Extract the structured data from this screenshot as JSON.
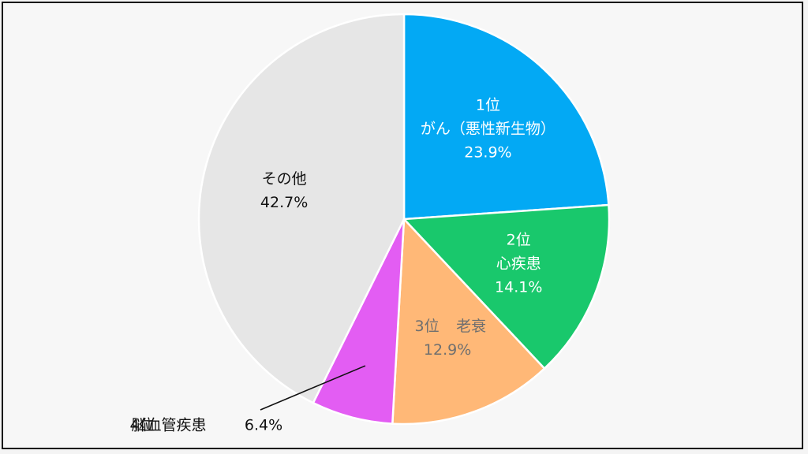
{
  "chart_data": {
    "type": "pie",
    "title": "",
    "start_angle_deg": 0,
    "direction": "clockwise",
    "slices": [
      {
        "rank": "1位",
        "name": "がん（悪性新生物）",
        "value": 23.9,
        "value_label": "23.9%",
        "color": "#03a9f4",
        "label_color": "#ffffff",
        "label_layout": "stacked"
      },
      {
        "rank": "2位",
        "name": "心疾患",
        "value": 14.1,
        "value_label": "14.1%",
        "color": "#19c86c",
        "label_color": "#ffffff",
        "label_layout": "stacked"
      },
      {
        "rank": "3位",
        "name": "老衰",
        "value": 12.9,
        "value_label": "12.9%",
        "color": "#ffb877",
        "label_color": "#6f6f6f",
        "label_layout": "rank-name-inline"
      },
      {
        "rank": "4位",
        "name": "脳血管疾患",
        "value": 6.4,
        "value_label": "6.4%",
        "color": "#e35df3",
        "label_color": "#111111",
        "label_layout": "callout"
      },
      {
        "rank": "",
        "name": "その他",
        "value": 42.7,
        "value_label": "42.7%",
        "color": "#e6e6e6",
        "label_color": "#111111",
        "label_layout": "stacked"
      }
    ]
  }
}
